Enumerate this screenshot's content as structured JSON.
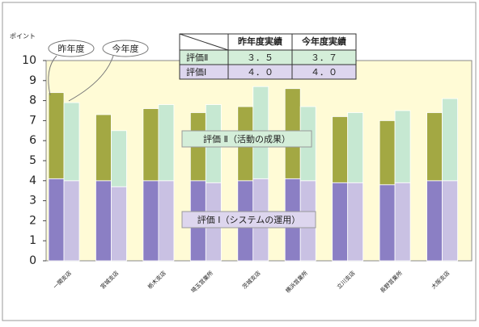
{
  "chart_data": {
    "type": "stacked-grouped-bar",
    "y_label": "ポイント",
    "categories": [
      "一関支店",
      "宮城支店",
      "栃木支店",
      "埼玉営業所",
      "茨城支店",
      "横浜営業所",
      "立川支店",
      "長野営業所",
      "大阪支店"
    ],
    "series": [
      {
        "name": "昨年度",
        "stacks": [
          {
            "color": "#8b7fc4",
            "values": [
              4.1,
              4.0,
              4.0,
              4.0,
              4.0,
              4.1,
              3.9,
              3.8,
              4.0
            ]
          },
          {
            "color": "#a3a843",
            "values": [
              4.3,
              3.3,
              3.6,
              3.4,
              3.7,
              4.5,
              3.3,
              3.2,
              3.4
            ]
          }
        ]
      },
      {
        "name": "今年度",
        "stacks": [
          {
            "color": "#c9c1e3",
            "values": [
              4.0,
              3.7,
              4.0,
              3.9,
              4.1,
              4.0,
              3.9,
              3.9,
              4.0
            ]
          },
          {
            "color": "#c6e8d2",
            "values": [
              3.9,
              2.8,
              3.8,
              3.9,
              4.6,
              3.7,
              3.5,
              3.6,
              4.1
            ]
          }
        ]
      }
    ],
    "layer_labels": [
      "評価 Ⅱ（活動の成果）",
      "評価 Ⅰ（システムの運用）"
    ],
    "ylim": [
      0,
      10
    ],
    "yticks": [
      0,
      1,
      2,
      3,
      4,
      5,
      6,
      7,
      8,
      9,
      10
    ],
    "background": "#fffbd6",
    "table": {
      "columns": [
        "昨年度実績",
        "今年度実績"
      ],
      "rows": [
        {
          "label": "評価Ⅱ",
          "cells": [
            "３．５",
            "３．７"
          ],
          "color": "#d4eed9"
        },
        {
          "label": "評価Ⅰ",
          "cells": [
            "４．０",
            "４．０"
          ],
          "color": "#ddd6ee"
        }
      ]
    }
  }
}
